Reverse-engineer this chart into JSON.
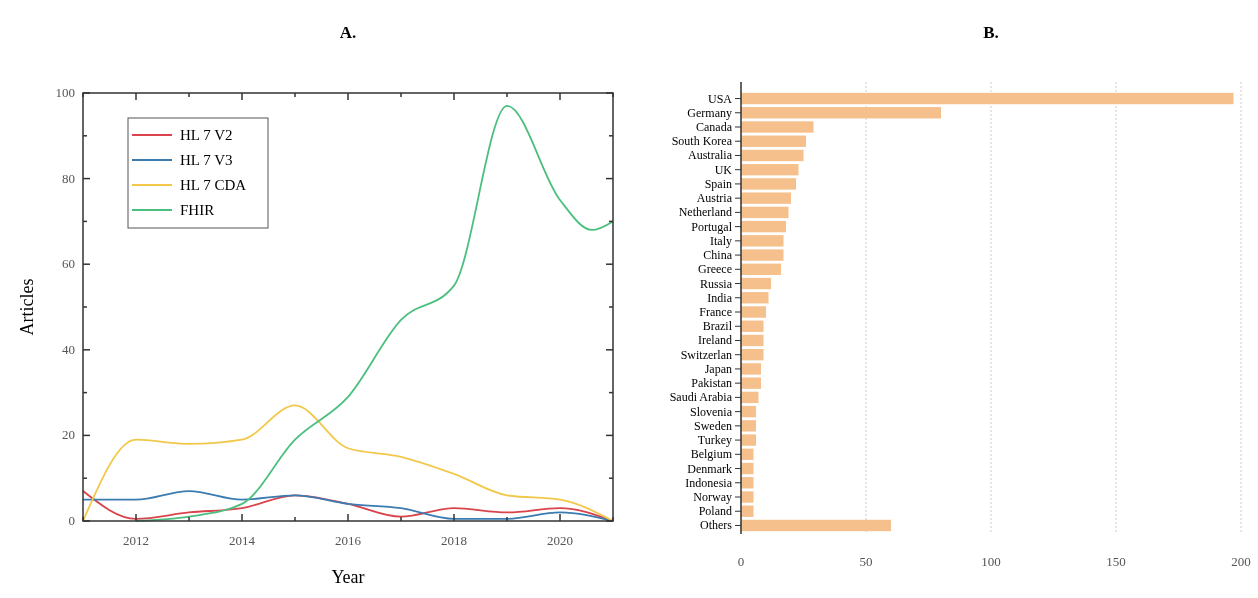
{
  "chart_data": [
    {
      "type": "line",
      "title": "A.",
      "xlabel": "Year",
      "ylabel": "Articles",
      "legend": "top left",
      "grid": false,
      "x": [
        2011,
        2012,
        2013,
        2014,
        2015,
        2016,
        2017,
        2018,
        2019,
        2020,
        2021
      ],
      "xlim": [
        2011,
        2021
      ],
      "xticks": [
        {
          "value": 2011,
          "label": null
        },
        2012,
        {
          "value": 2013,
          "label": null
        },
        2014,
        {
          "value": 2015,
          "label": null
        },
        2016,
        {
          "value": 2017,
          "label": null
        },
        2018,
        {
          "value": 2019,
          "label": null
        },
        2020,
        {
          "value": 2021,
          "label": null
        }
      ],
      "ylim": [
        0,
        100
      ],
      "yticks": [
        0,
        {
          "value": 10,
          "label": null
        },
        20,
        {
          "value": 30,
          "label": null
        },
        40,
        {
          "value": 50,
          "label": null
        },
        60,
        {
          "value": 70,
          "label": null
        },
        80,
        {
          "value": 90,
          "label": null
        },
        100
      ],
      "series": [
        {
          "name": "HL 7 V2",
          "color": "#d9434b",
          "values": [
            7,
            0.5,
            2,
            3,
            6,
            4,
            1,
            3,
            2,
            3,
            0
          ]
        },
        {
          "name": "HL 7 V3",
          "color": "#3a7bb0",
          "values": [
            5,
            5,
            7,
            5,
            6,
            4,
            3,
            0.5,
            0.5,
            2,
            0
          ]
        },
        {
          "name": "HL 7 CDA",
          "color": "#f2c84b",
          "values": [
            0,
            19,
            18,
            19,
            27,
            17,
            15,
            11,
            6,
            5,
            0
          ]
        },
        {
          "name": "FHIR",
          "color": "#4cbf7f",
          "x": [
            2012,
            2013,
            2014,
            2015,
            2016,
            2017,
            2018,
            2019,
            2020,
            2020.6,
            2021
          ],
          "values": [
            0,
            1,
            4,
            19,
            29,
            47,
            55,
            97,
            75,
            68,
            70
          ]
        }
      ]
    },
    {
      "type": "bar",
      "title": "B.",
      "orientation": "horizontal",
      "grid": "x",
      "color": "#f6c08c",
      "categories": [
        "USA",
        "Germany",
        "Canada",
        "South Korea",
        "Australia",
        "UK",
        "Spain",
        "Austria",
        "Netherland",
        "Portugal",
        "Italy",
        "China",
        "Greece",
        "Russia",
        "India",
        "France",
        "Brazil",
        "Ireland",
        "Switzerlan",
        "Japan",
        "Pakistan",
        "Saudi Arabia",
        "Slovenia",
        "Sweden",
        "Turkey",
        "Belgium",
        "Denmark",
        "Indonesia",
        "Norway",
        "Poland",
        "Others"
      ],
      "values": [
        197,
        80,
        29,
        26,
        25,
        23,
        22,
        20,
        19,
        18,
        17,
        17,
        16,
        12,
        11,
        10,
        9,
        9,
        9,
        8,
        8,
        7,
        6,
        6,
        6,
        5,
        5,
        5,
        5,
        5,
        60
      ],
      "xlim": [
        0,
        200
      ],
      "xticks": [
        0,
        50,
        100,
        150,
        200
      ]
    }
  ]
}
